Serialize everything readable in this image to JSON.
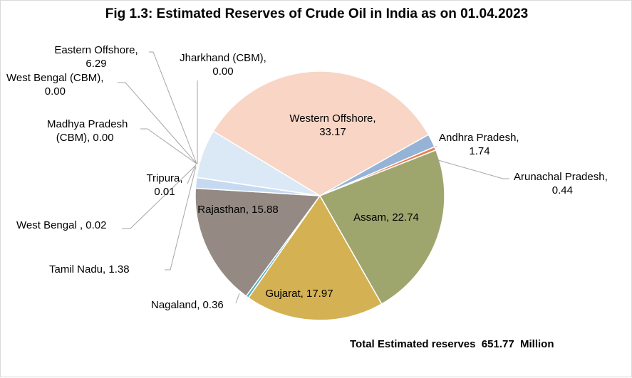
{
  "chart_data": {
    "type": "pie",
    "title": "Fig 1.3: Estimated Reserves of Crude Oil in India as on 01.04.2023",
    "slices": [
      {
        "label": "Western Offshore",
        "value": 33.17,
        "text": [
          "Western Offshore,",
          "33.17"
        ],
        "color": "#f8d5c4"
      },
      {
        "label": "Andhra Pradesh",
        "value": 1.74,
        "text": [
          "Andhra Pradesh,",
          "1.74"
        ],
        "color": "#95b3d7"
      },
      {
        "label": "Arunachal Pradesh",
        "value": 0.44,
        "text": [
          "Arunachal Pradesh,",
          "0.44"
        ],
        "color": "#e6804d"
      },
      {
        "label": "Assam",
        "value": 22.74,
        "text": [
          "Assam, 22.74"
        ],
        "color": "#9ea66e"
      },
      {
        "label": "Gujarat",
        "value": 17.97,
        "text": [
          "Gujarat, 17.97"
        ],
        "color": "#d4b152"
      },
      {
        "label": "Nagaland",
        "value": 0.36,
        "text": [
          "Nagaland, 0.36"
        ],
        "color": "#4bacc6"
      },
      {
        "label": "Rajasthan",
        "value": 15.88,
        "text": [
          "Rajasthan, 15.88"
        ],
        "color": "#948a83"
      },
      {
        "label": "Tamil Nadu",
        "value": 1.38,
        "text": [
          "Tamil Nadu, 1.38"
        ],
        "color": "#c5d9f1"
      },
      {
        "label": "West Bengal",
        "value": 0.02,
        "text": [
          "West Bengal , 0.02"
        ],
        "color": "#ffc000"
      },
      {
        "label": "Tripura",
        "value": 0.01,
        "text": [
          "Tripura,",
          "0.01"
        ],
        "color": "#8064a2"
      },
      {
        "label": "Eastern Offshore",
        "value": 6.29,
        "text": [
          "Eastern Offshore,",
          "6.29"
        ],
        "color": "#dbe8f5"
      },
      {
        "label": "Madhya Pradesh (CBM)",
        "value": 0.0,
        "text": [
          "Madhya Pradesh",
          "(CBM), 0.00"
        ],
        "color": "#a5a5a5"
      },
      {
        "label": "West Bengal (CBM)",
        "value": 0.0,
        "text": [
          "West Bengal (CBM),",
          "0.00"
        ],
        "color": "#f79646"
      },
      {
        "label": "Jharkhand (CBM)",
        "value": 0.0,
        "text": [
          "Jharkhand (CBM),",
          "0.00"
        ],
        "color": "#4f81bd"
      }
    ],
    "note": "Total Estimated reserves  651.77  Million"
  }
}
